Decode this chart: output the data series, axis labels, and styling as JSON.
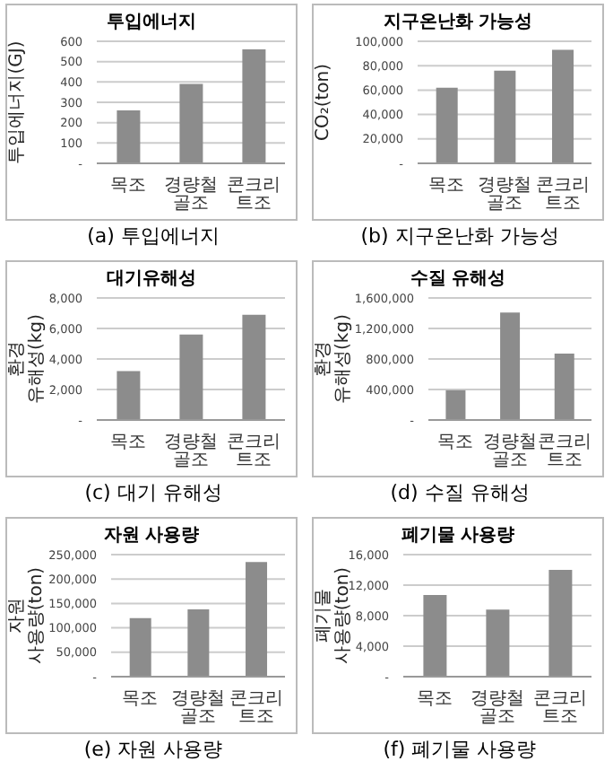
{
  "chart_data": [
    {
      "type": "bar",
      "title": "투입에너지",
      "ylabel": "투입에너지(GJ)",
      "categories": [
        "목조",
        "경량철골조",
        "콘크리트조"
      ],
      "values": [
        260,
        390,
        560
      ],
      "color": "#8c8c8c",
      "ylim": [
        0,
        600
      ],
      "yticks": [
        {
          "value": 0,
          "label": "-"
        },
        100,
        200,
        300,
        400,
        500,
        600
      ],
      "grid": "y",
      "annotations": [
        "(a) 투입에너지"
      ]
    },
    {
      "type": "bar",
      "title": "지구온난화 가능성",
      "ylabel": "CO₂(ton)",
      "categories": [
        "목조",
        "경량철골조",
        "콘크리트조"
      ],
      "values": [
        62000,
        76000,
        93000
      ],
      "color": "#8c8c8c",
      "ylim": [
        0,
        100000
      ],
      "yticks": [
        {
          "value": 0,
          "label": "-"
        },
        {
          "value": 20000,
          "label": "20,000"
        },
        {
          "value": 40000,
          "label": "40,000"
        },
        {
          "value": 60000,
          "label": "60,000"
        },
        {
          "value": 80000,
          "label": "80,000"
        },
        {
          "value": 100000,
          "label": "100,000"
        }
      ],
      "grid": "y",
      "annotations": [
        "(b) 지구온난화 가능성"
      ]
    },
    {
      "type": "bar",
      "title": "대기유해성",
      "ylabel": "환경 유해성(kg)",
      "categories": [
        "목조",
        "경량철골조",
        "콘크리트조"
      ],
      "values": [
        3200,
        5600,
        6900
      ],
      "color": "#8c8c8c",
      "ylim": [
        0,
        8000
      ],
      "yticks": [
        {
          "value": 0,
          "label": "-"
        },
        {
          "value": 2000,
          "label": "2,000"
        },
        {
          "value": 4000,
          "label": "4,000"
        },
        {
          "value": 6000,
          "label": "6,000"
        },
        {
          "value": 8000,
          "label": "8,000"
        }
      ],
      "grid": "y",
      "annotations": [
        "(c) 대기 유해성"
      ]
    },
    {
      "type": "bar",
      "title": "수질 유해성",
      "ylabel": "환경 유해성(kg)",
      "categories": [
        "목조",
        "경량철골조",
        "콘크리트조"
      ],
      "values": [
        390000,
        1410000,
        870000
      ],
      "color": "#8c8c8c",
      "ylim": [
        0,
        1600000
      ],
      "yticks": [
        {
          "value": 0,
          "label": "-"
        },
        {
          "value": 400000,
          "label": "400,000"
        },
        {
          "value": 800000,
          "label": "800,000"
        },
        {
          "value": 1200000,
          "label": "1,200,000"
        },
        {
          "value": 1600000,
          "label": "1,600,000"
        }
      ],
      "grid": "y",
      "annotations": [
        "(d) 수질 유해성"
      ]
    },
    {
      "type": "bar",
      "title": "자원 사용량",
      "ylabel": "자원 사용량(ton)",
      "categories": [
        "목조",
        "경량철골조",
        "콘크리트조"
      ],
      "values": [
        120000,
        138000,
        235000
      ],
      "color": "#8c8c8c",
      "ylim": [
        0,
        250000
      ],
      "yticks": [
        {
          "value": 0,
          "label": "-"
        },
        {
          "value": 50000,
          "label": "50,000"
        },
        {
          "value": 100000,
          "label": "100,000"
        },
        {
          "value": 150000,
          "label": "150,000"
        },
        {
          "value": 200000,
          "label": "200,000"
        },
        {
          "value": 250000,
          "label": "250,000"
        }
      ],
      "grid": "y",
      "annotations": [
        "(e) 자원 사용량"
      ]
    },
    {
      "type": "bar",
      "title": "폐기물 사용량",
      "ylabel": "폐기물 사용량(ton)",
      "categories": [
        "목조",
        "경량철골조",
        "콘크리트조"
      ],
      "values": [
        10700,
        8800,
        14000
      ],
      "color": "#8c8c8c",
      "ylim": [
        0,
        16000
      ],
      "yticks": [
        {
          "value": 0,
          "label": "-"
        },
        {
          "value": 4000,
          "label": "4,000"
        },
        {
          "value": 8000,
          "label": "8,000"
        },
        {
          "value": 12000,
          "label": "12,000"
        },
        {
          "value": 16000,
          "label": "16,000"
        }
      ],
      "grid": "y",
      "annotations": [
        "(f) 폐기물 사용량"
      ]
    }
  ]
}
